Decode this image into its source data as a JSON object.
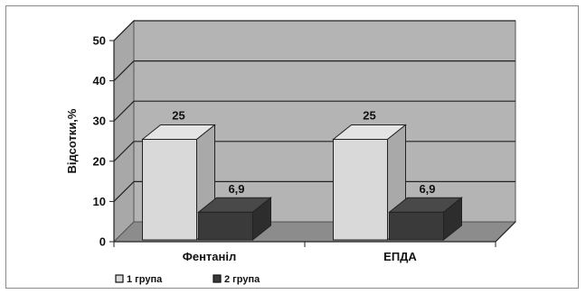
{
  "chart_data": {
    "type": "bar",
    "categories": [
      "Фентаніл",
      "ЕПДА"
    ],
    "series": [
      {
        "name": "1 група",
        "values": [
          25,
          25
        ],
        "color": "#d9d9d9",
        "labels": [
          "25",
          "25"
        ]
      },
      {
        "name": "2 група",
        "values": [
          6.9,
          6.9
        ],
        "color": "#3a3a3a",
        "labels": [
          "6,9",
          "6,9"
        ]
      }
    ],
    "ylabel": "Відсотки,%",
    "xlabel": "",
    "ylim": [
      0,
      50
    ],
    "yticks": [
      0,
      10,
      20,
      30,
      40,
      50
    ],
    "grid": true,
    "style": "3d",
    "legend_position": "bottom-left",
    "wall_color": "#a8a8a8",
    "floor_color": "#8c8c8c"
  }
}
